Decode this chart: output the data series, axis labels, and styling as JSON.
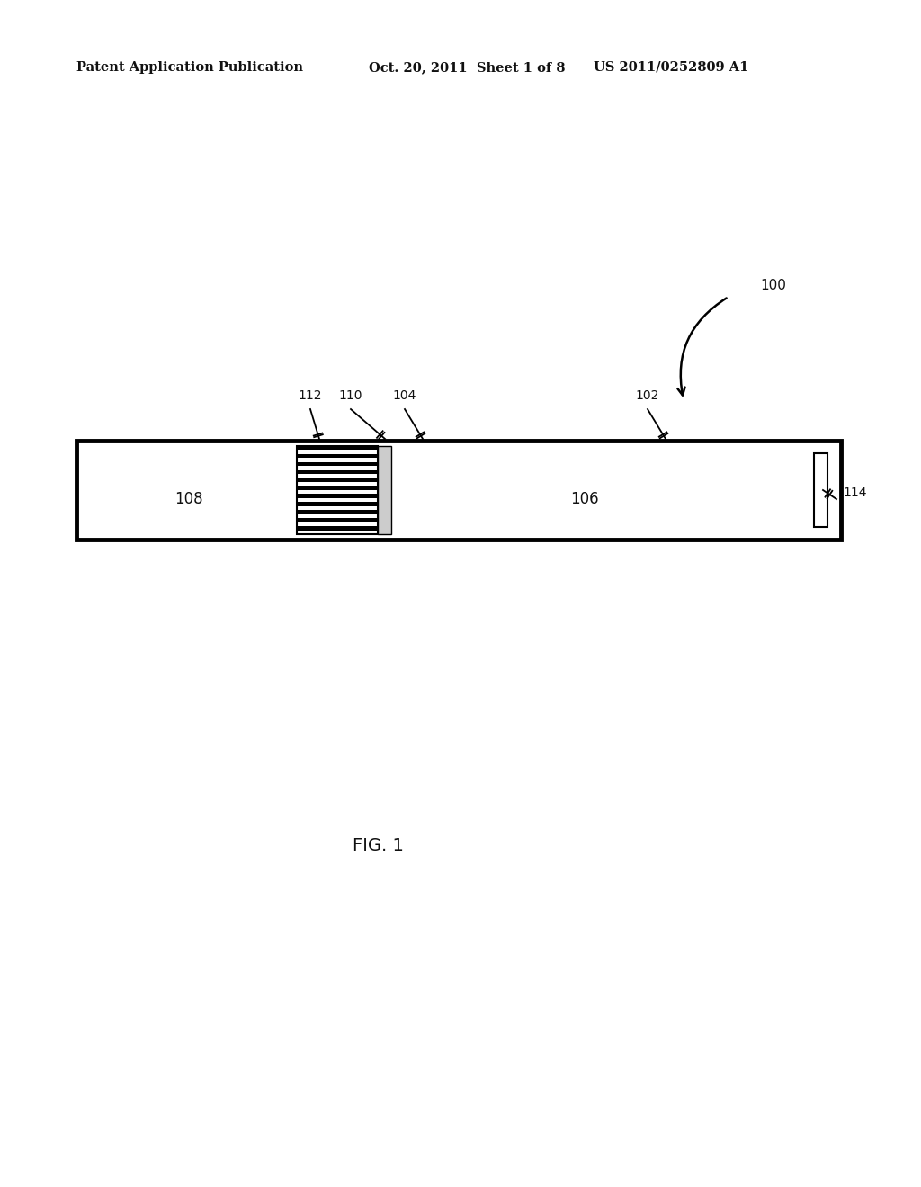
{
  "bg_color": "#ffffff",
  "header_left": "Patent Application Publication",
  "header_mid": "Oct. 20, 2011  Sheet 1 of 8",
  "header_right": "US 2011/0252809 A1",
  "fig_caption": "FIG. 1",
  "label_100": "100",
  "label_102": "102",
  "label_104": "104",
  "label_106": "106",
  "label_108": "108",
  "label_110": "110",
  "label_112": "112",
  "label_114": "114",
  "line_color": "#000000",
  "num_stripes": 22
}
